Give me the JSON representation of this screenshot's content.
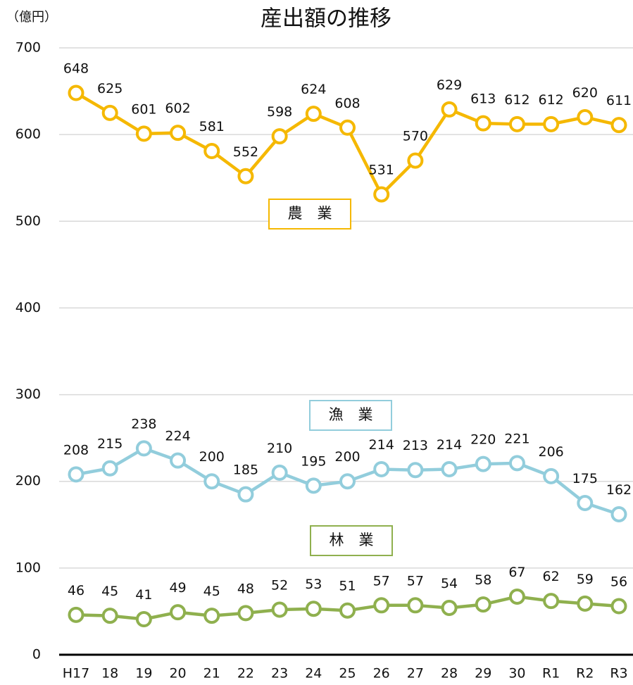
{
  "chart_data": {
    "type": "line",
    "title": "産出額の推移",
    "y_axis_label": "（億円）",
    "categories": [
      "H17",
      "18",
      "19",
      "20",
      "21",
      "22",
      "23",
      "24",
      "25",
      "26",
      "27",
      "28",
      "29",
      "30",
      "R1",
      "R2",
      "R3"
    ],
    "series": [
      {
        "name": "農　業",
        "color": "#f5b800",
        "values": [
          648,
          625,
          601,
          602,
          581,
          552,
          598,
          624,
          608,
          531,
          570,
          629,
          613,
          612,
          612,
          620,
          611
        ]
      },
      {
        "name": "漁　業",
        "color": "#92cddc",
        "values": [
          208,
          215,
          238,
          224,
          200,
          185,
          210,
          195,
          200,
          214,
          213,
          214,
          220,
          221,
          206,
          175,
          162
        ]
      },
      {
        "name": "林　業",
        "color": "#8fb04e",
        "values": [
          46,
          45,
          41,
          49,
          45,
          48,
          52,
          53,
          51,
          57,
          57,
          54,
          58,
          67,
          62,
          59,
          56
        ]
      }
    ],
    "ylim": [
      0,
      700
    ],
    "yticks": [
      0,
      100,
      200,
      300,
      400,
      500,
      600,
      700
    ],
    "grid": true
  }
}
